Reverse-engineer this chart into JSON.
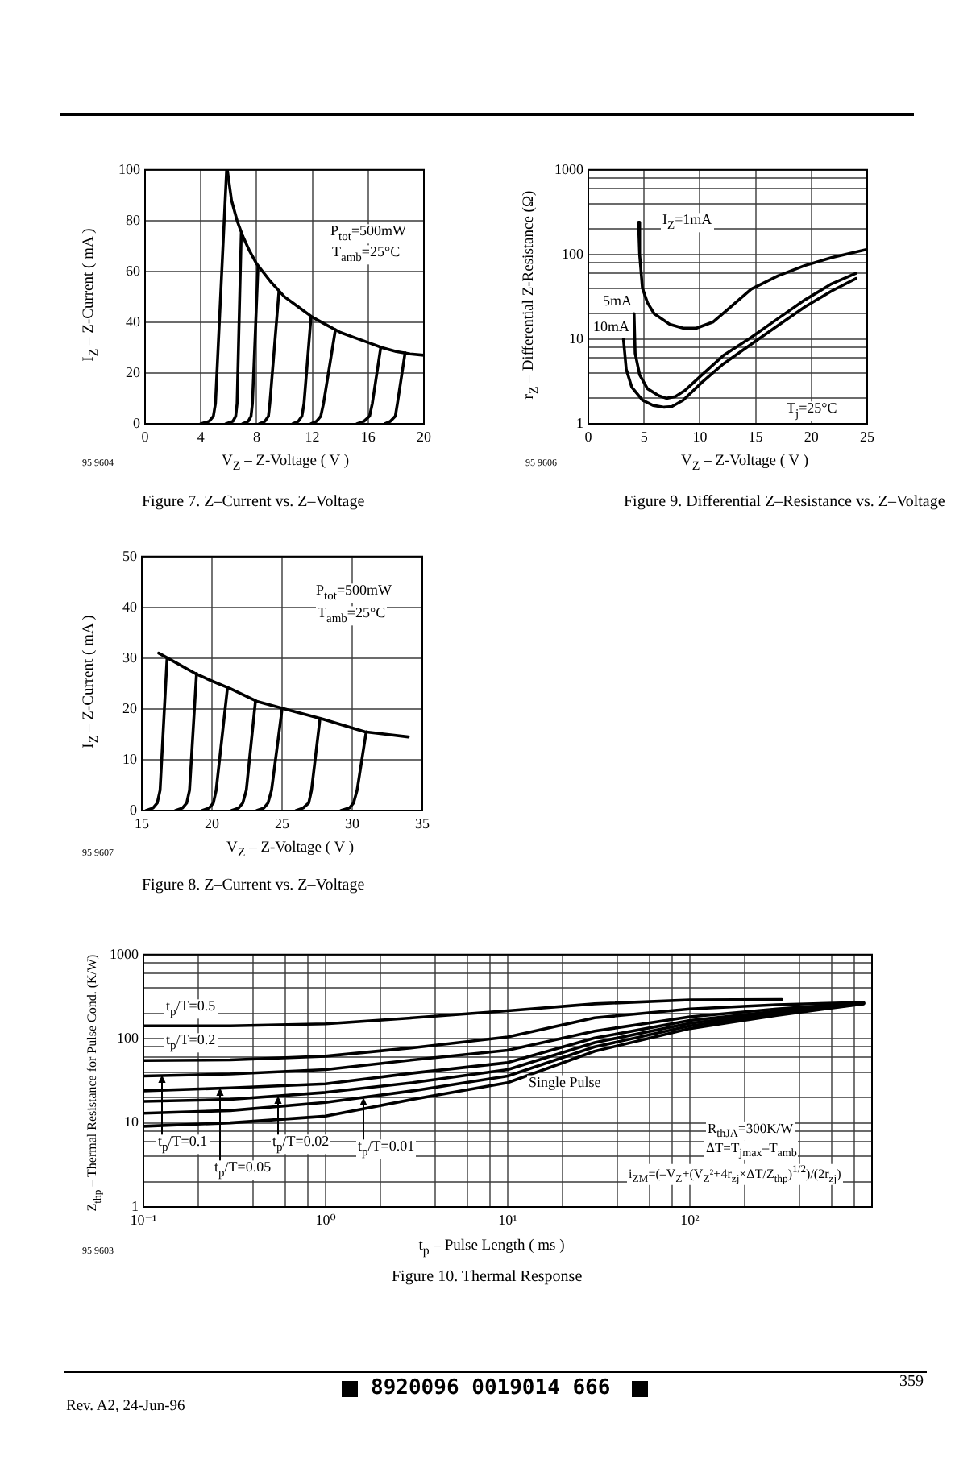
{
  "chart_data": [
    {
      "type": "line",
      "title": "Figure 7. Z–Current vs. Z–Voltage",
      "xlabel": "V$_{Z}$ – Z-Voltage ( V )",
      "ylabel": "I$_{Z}$ – Z-Current ( mA )",
      "annotations": [
        "P$_{tot}$=500mW",
        "T$_{amb}$=25°C",
        "95 9604"
      ],
      "xlim": [
        0,
        20
      ],
      "ylim": [
        0,
        100
      ],
      "xticks": [
        0,
        4,
        8,
        12,
        16,
        20
      ],
      "yticks": [
        0,
        20,
        40,
        60,
        80,
        100
      ],
      "grid": true,
      "legend": false,
      "marker": "none",
      "line_style": "solid",
      "series": [
        {
          "color": "#000000",
          "x": [
            5.9,
            6.2,
            6.6,
            7,
            7.5,
            8,
            9,
            10,
            11,
            12,
            13,
            14,
            15,
            16,
            17,
            18,
            19,
            20
          ],
          "values": [
            100,
            88,
            80,
            74,
            68,
            63,
            56,
            50,
            46,
            42,
            39,
            36,
            34,
            32,
            30,
            28.5,
            27.5,
            27
          ]
        },
        {
          "color": "#000000",
          "x": [
            4,
            4.6,
            4.9,
            5.05,
            5.85
          ],
          "values": [
            0,
            1,
            3,
            8,
            100
          ]
        },
        {
          "color": "#000000",
          "x": [
            5.8,
            6.3,
            6.5,
            6.6,
            6.9
          ],
          "values": [
            0,
            1,
            3,
            8,
            75
          ]
        },
        {
          "color": "#000000",
          "x": [
            7,
            7.4,
            7.6,
            7.7,
            8.1
          ],
          "values": [
            0,
            1,
            3,
            8,
            62
          ]
        },
        {
          "color": "#000000",
          "x": [
            8.2,
            8.6,
            8.85,
            8.95,
            9.6
          ],
          "values": [
            0,
            1,
            3,
            8,
            52
          ]
        },
        {
          "color": "#000000",
          "x": [
            10.6,
            11,
            11.25,
            11.4,
            11.9
          ],
          "values": [
            0,
            1,
            3,
            8,
            42
          ]
        },
        {
          "color": "#000000",
          "x": [
            11.9,
            12.3,
            12.6,
            12.8,
            13.65
          ],
          "values": [
            0,
            1,
            3,
            8,
            37
          ]
        },
        {
          "color": "#000000",
          "x": [
            15.2,
            15.7,
            16.1,
            16.3,
            16.9
          ],
          "values": [
            0,
            1,
            3,
            8,
            30
          ]
        },
        {
          "color": "#000000",
          "x": [
            17.2,
            17.6,
            17.95,
            18.1,
            18.65
          ],
          "values": [
            0,
            1,
            3,
            8,
            28
          ]
        }
      ]
    },
    {
      "type": "line",
      "title": "Figure 9. Differential Z–Resistance vs. Z–Voltage",
      "xlabel": "V$_{Z}$ – Z-Voltage ( V )",
      "ylabel": "r$_{Z}$ – Differential Z-Resistance (Ω)",
      "annotations": [
        "T$_{j}$=25°C",
        "95 9606"
      ],
      "log": "y",
      "xlim": [
        0,
        25
      ],
      "ylim": [
        1,
        1000
      ],
      "xticks": [
        0,
        5,
        10,
        15,
        20,
        25
      ],
      "yticks": [
        1,
        {
          "value": 2,
          "label": null
        },
        {
          "value": 4,
          "label": null
        },
        {
          "value": 6,
          "label": null
        },
        {
          "value": 8,
          "label": null
        },
        10,
        {
          "value": 20,
          "label": null
        },
        {
          "value": 40,
          "label": null
        },
        {
          "value": 60,
          "label": null
        },
        {
          "value": 80,
          "label": null
        },
        100,
        {
          "value": 200,
          "label": null
        },
        {
          "value": 400,
          "label": null
        },
        {
          "value": 600,
          "label": null
        },
        {
          "value": 800,
          "label": null
        },
        1000
      ],
      "grid": true,
      "legend": false,
      "marker": "none",
      "line_style": "solid",
      "series": [
        {
          "name": "I$_{Z}$=1mA",
          "color": "#000000",
          "x": [
            4.5,
            4.6,
            4.85,
            5.3,
            5.9,
            7.3,
            8.5,
            9.7,
            11.2,
            12.6,
            14.6,
            17,
            19.4,
            21.8,
            25
          ],
          "values": [
            240,
            100,
            40,
            27,
            20,
            15,
            13.5,
            13.5,
            16,
            23,
            39,
            56,
            74,
            92,
            115
          ]
        },
        {
          "name": "5mA",
          "color": "#000000",
          "x": [
            4.1,
            4.2,
            4.6,
            5.3,
            6.3,
            7,
            7.8,
            8.7,
            10.2,
            12.1,
            14.6,
            17,
            19.4,
            21.8,
            24
          ],
          "values": [
            20,
            6.8,
            3.8,
            2.6,
            2.15,
            2,
            2.1,
            2.5,
            3.8,
            6.4,
            10.5,
            17.5,
            29,
            45,
            60
          ]
        },
        {
          "name": "10mA",
          "color": "#000000",
          "x": [
            3.15,
            3.4,
            3.9,
            4.85,
            5.8,
            6.8,
            7.5,
            8.5,
            10.2,
            12.1,
            14.6,
            17,
            19.4,
            21.8,
            24
          ],
          "values": [
            10,
            4.4,
            2.7,
            1.9,
            1.65,
            1.57,
            1.6,
            1.9,
            3.1,
            5.1,
            8.7,
            14.5,
            24,
            37,
            52
          ]
        }
      ]
    },
    {
      "type": "line",
      "title": "Figure 8. Z–Current vs. Z–Voltage",
      "xlabel": "V$_{Z}$ – Z-Voltage ( V )",
      "ylabel": "I$_{Z}$ – Z-Current ( mA )",
      "annotations": [
        "P$_{tot}$=500mW",
        "T$_{amb}$=25°C",
        "95 9607"
      ],
      "xlim": [
        15,
        35
      ],
      "ylim": [
        0,
        50
      ],
      "xticks": [
        15,
        20,
        25,
        30,
        35
      ],
      "yticks": [
        0,
        10,
        20,
        30,
        40,
        50
      ],
      "grid": true,
      "legend": false,
      "marker": "none",
      "line_style": "solid",
      "series": [
        {
          "color": "#000000",
          "x": [
            16.2,
            17.5,
            18.8,
            20,
            21.3,
            23.2,
            25.2,
            27.9,
            30.9,
            32.5,
            34
          ],
          "values": [
            31,
            29,
            27,
            25.5,
            24,
            21.5,
            20,
            18,
            15.5,
            15,
            14.5
          ]
        },
        {
          "color": "#000000",
          "x": [
            15.3,
            15.8,
            16.1,
            16.3,
            16.8
          ],
          "values": [
            0,
            0.5,
            1.5,
            4,
            30
          ]
        },
        {
          "color": "#000000",
          "x": [
            17.4,
            17.9,
            18.2,
            18.4,
            18.9
          ],
          "values": [
            0,
            0.5,
            1.5,
            4,
            27
          ]
        },
        {
          "color": "#000000",
          "x": [
            19.3,
            19.8,
            20.1,
            20.3,
            21.1
          ],
          "values": [
            0,
            0.5,
            1.5,
            4,
            24
          ]
        },
        {
          "color": "#000000",
          "x": [
            21.4,
            21.9,
            22.2,
            22.45,
            23.1
          ],
          "values": [
            0,
            0.5,
            1.5,
            4,
            21.5
          ]
        },
        {
          "color": "#000000",
          "x": [
            23.2,
            23.7,
            24,
            24.25,
            25
          ],
          "values": [
            0,
            0.5,
            1.5,
            4,
            20
          ]
        },
        {
          "color": "#000000",
          "x": [
            26,
            26.5,
            26.9,
            27.1,
            27.7
          ],
          "values": [
            0,
            0.5,
            1.5,
            4,
            18
          ]
        },
        {
          "color": "#000000",
          "x": [
            29.2,
            29.8,
            30.1,
            30.35,
            31
          ],
          "values": [
            0,
            0.5,
            1.5,
            4,
            15.5
          ]
        }
      ]
    },
    {
      "type": "line",
      "title": "Figure 10. Thermal Response",
      "xlabel": "t$_{p}$ – Pulse Length ( ms )",
      "ylabel": "Z$_{thp}$ – Thermal Resistance for Pulse Cond. (K/W)",
      "annotations": [
        "R$_{thJA}$=300K/W",
        "ΔT=T$_{jmax}$–T$_{amb}$",
        "i$_{ZM}$=(–V$_{Z}$+(V$_{Z}$²+4r$_{zj}$×ΔT/Z$_{thp}$)$^{1/2}$)/(2r$_{zj}$)",
        "95 9603",
        "Rev. A2, 24-Jun-96",
        "359",
        "8920096 0019014 666"
      ],
      "log": "xy",
      "xlim": [
        0.1,
        1000
      ],
      "ylim": [
        1,
        1000
      ],
      "xticks": [
        {
          "value": 0.1,
          "label": "10⁻¹"
        },
        {
          "value": 0.2,
          "label": null
        },
        {
          "value": 0.4,
          "label": null
        },
        {
          "value": 0.6,
          "label": null
        },
        {
          "value": 0.8,
          "label": null
        },
        {
          "value": 1,
          "label": "10⁰"
        },
        {
          "value": 2,
          "label": null
        },
        {
          "value": 4,
          "label": null
        },
        {
          "value": 6,
          "label": null
        },
        {
          "value": 8,
          "label": null
        },
        {
          "value": 10,
          "label": "10¹"
        },
        {
          "value": 20,
          "label": null
        },
        {
          "value": 40,
          "label": null
        },
        {
          "value": 60,
          "label": null
        },
        {
          "value": 80,
          "label": null
        },
        {
          "value": 100,
          "label": "10²"
        },
        {
          "value": 200,
          "label": null
        },
        {
          "value": 400,
          "label": null
        },
        {
          "value": 600,
          "label": null
        },
        {
          "value": 800,
          "label": null
        }
      ],
      "yticks": [
        1,
        {
          "value": 2,
          "label": null
        },
        {
          "value": 4,
          "label": null
        },
        {
          "value": 6,
          "label": null
        },
        {
          "value": 8,
          "label": null
        },
        10,
        {
          "value": 20,
          "label": null
        },
        {
          "value": 40,
          "label": null
        },
        {
          "value": 60,
          "label": null
        },
        {
          "value": 80,
          "label": null
        },
        100,
        {
          "value": 200,
          "label": null
        },
        {
          "value": 400,
          "label": null
        },
        {
          "value": 600,
          "label": null
        },
        {
          "value": 800,
          "label": null
        },
        1000
      ],
      "grid": true,
      "legend": false,
      "marker": "none",
      "line_style": "solid",
      "x": [
        0.1,
        0.3,
        1,
        3,
        10,
        30,
        100,
        300,
        900
      ],
      "series": [
        {
          "name": "t$_{p}$/T=0.5",
          "color": "#000000",
          "x": [
            0.1,
            0.3,
            1,
            3,
            10,
            30,
            100,
            320
          ],
          "values": [
            142,
            142,
            150,
            177,
            215,
            260,
            290,
            293
          ]
        },
        {
          "name": "t$_{p}$/T=0.2",
          "color": "#000000",
          "values": [
            55,
            56,
            62,
            78,
            105,
            177,
            226,
            254,
            270
          ]
        },
        {
          "name": "t$_{p}$/T=0.1",
          "color": "#000000",
          "values": [
            36,
            38,
            43,
            56,
            73,
            123,
            182,
            226,
            268
          ]
        },
        {
          "name": "t$_{p}$/T=0.05",
          "color": "#000000",
          "values": [
            24,
            26,
            29,
            39,
            52,
            102,
            165,
            212,
            266
          ]
        },
        {
          "name": "t$_{p}$/T=0.02",
          "color": "#000000",
          "values": [
            18,
            19,
            23,
            30,
            43,
            90,
            153,
            204,
            264
          ]
        },
        {
          "name": "t$_{p}$/T=0.01",
          "color": "#000000",
          "values": [
            13,
            14,
            17.5,
            24,
            36,
            80,
            142,
            196,
            262
          ]
        },
        {
          "name": "Single Pulse",
          "color": "#000000",
          "values": [
            9.1,
            10,
            12,
            19,
            30,
            71,
            132,
            190,
            260
          ]
        }
      ]
    }
  ]
}
